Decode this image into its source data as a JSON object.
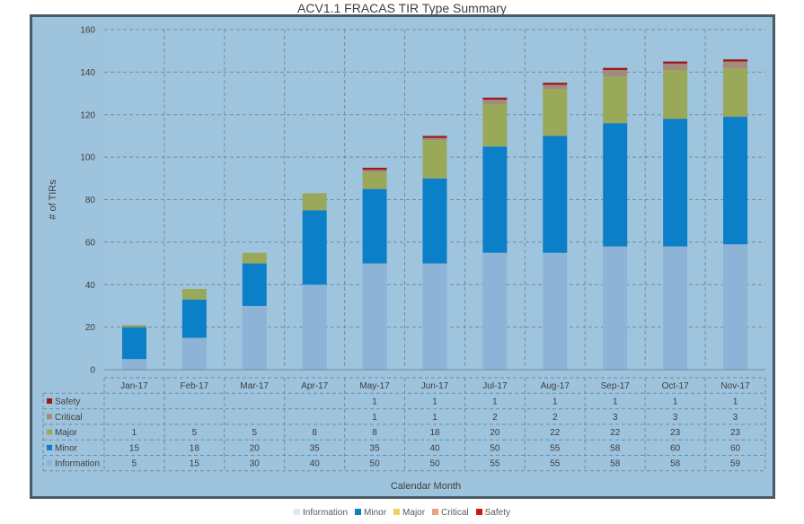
{
  "chart_data": {
    "type": "bar",
    "stacked": true,
    "title": "ACV1.1 FRACAS TIR Type Summary",
    "xlabel": "Calendar Month",
    "ylabel": "# of TIRs",
    "ylim": [
      0,
      160
    ],
    "yticks": [
      0,
      20,
      40,
      60,
      80,
      100,
      120,
      140,
      160
    ],
    "grid": true,
    "legend_position": "bottom",
    "categories": [
      "Jan-17",
      "Feb-17",
      "Mar-17",
      "Apr-17",
      "May-17",
      "Jun-17",
      "Jul-17",
      "Aug-17",
      "Sep-17",
      "Oct-17",
      "Nov-17"
    ],
    "series": [
      {
        "name": "Information",
        "color": "#8db3d6",
        "values": [
          5,
          15,
          30,
          40,
          50,
          50,
          55,
          55,
          58,
          58,
          59
        ]
      },
      {
        "name": "Minor",
        "color": "#0b7fc7",
        "values": [
          15,
          18,
          20,
          35,
          35,
          40,
          50,
          55,
          58,
          60,
          60
        ]
      },
      {
        "name": "Major",
        "color": "#9aa85a",
        "values": [
          1,
          5,
          5,
          8,
          8,
          18,
          20,
          22,
          22,
          23,
          23
        ]
      },
      {
        "name": "Critical",
        "color": "#a48a7c",
        "values": [
          null,
          null,
          null,
          null,
          1,
          1,
          2,
          2,
          3,
          3,
          3
        ]
      },
      {
        "name": "Safety",
        "color": "#9b1c1c",
        "values": [
          null,
          null,
          null,
          null,
          1,
          1,
          1,
          1,
          1,
          1,
          1
        ]
      }
    ],
    "table_rows": [
      "Safety",
      "Critical",
      "Major",
      "Minor",
      "Information"
    ]
  },
  "legend": [
    {
      "name": "Information",
      "color": "#dce9f5"
    },
    {
      "name": "Minor",
      "color": "#0b7fc7"
    },
    {
      "name": "Major",
      "color": "#f0d060"
    },
    {
      "name": "Critical",
      "color": "#e8a27c"
    },
    {
      "name": "Safety",
      "color": "#d01818"
    }
  ]
}
